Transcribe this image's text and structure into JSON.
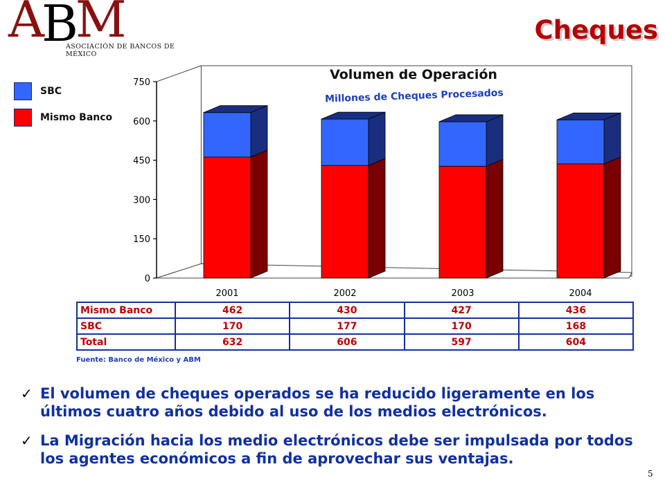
{
  "header": {
    "logo_letters": "ABM",
    "logo_text": "ASOCIACIÓN DE BANCOS DE MÉXICO",
    "title": "Cheques"
  },
  "chart_data": {
    "type": "bar",
    "stacked": true,
    "title": "Volumen de Operación",
    "subtitle": "Millones de  Cheques Procesados",
    "categories": [
      "2001",
      "2002",
      "2003",
      "2004"
    ],
    "series": [
      {
        "name": "Mismo Banco",
        "color": "#ff0000",
        "side_color": "#7a0000",
        "values": [
          462,
          430,
          427,
          436
        ]
      },
      {
        "name": "SBC",
        "color": "#3366ff",
        "side_color": "#1a2e80",
        "values": [
          170,
          177,
          170,
          168
        ]
      }
    ],
    "yticks": [
      "0",
      "150",
      "300",
      "450",
      "600",
      "750"
    ],
    "ylim": [
      0,
      750
    ],
    "grid": false,
    "legend": "left"
  },
  "legend": [
    {
      "label": "SBC",
      "color": "#3366ff"
    },
    {
      "label": "Mismo Banco",
      "color": "#ff0000"
    }
  ],
  "table": {
    "rows": [
      {
        "label": "Mismo Banco",
        "values": [
          "462",
          "430",
          "427",
          "436"
        ]
      },
      {
        "label": "SBC",
        "values": [
          "170",
          "177",
          "170",
          "168"
        ]
      },
      {
        "label": "Total",
        "values": [
          "632",
          "606",
          "597",
          "604"
        ]
      }
    ]
  },
  "source": "Fuente: Banco de México y ABM",
  "bullets": [
    "El volumen de cheques operados se ha reducido ligeramente en los últimos cuatro años debido al uso de los medios electrónicos.",
    "La Migración hacia los medio electrónicos debe ser impulsada por todos los agentes económicos a fin de aprovechar sus ventajas."
  ],
  "check_glyph": "✓",
  "page_number": "5"
}
